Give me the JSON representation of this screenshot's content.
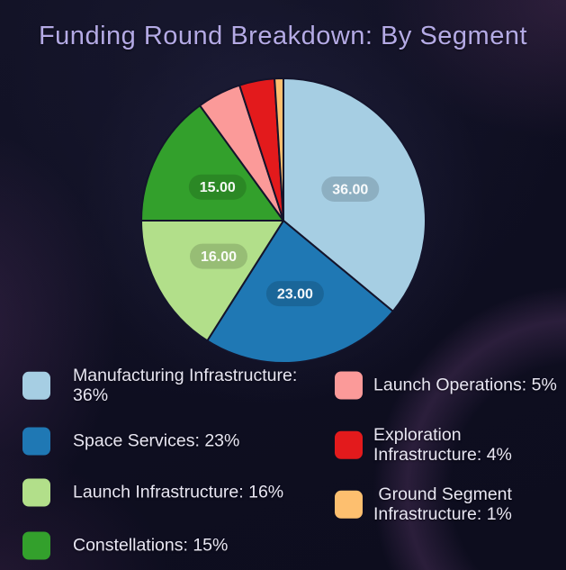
{
  "page": {
    "title": "Funding Round Breakdown: By Segment"
  },
  "colors": {
    "background": "#0e0e20",
    "title_text": "#b4aae5",
    "legend_text": "#e8e6f2",
    "slice_stroke": "#14142b",
    "value_pill": "rgba(0,0,0,0.15)",
    "value_text": "#ffffff"
  },
  "chart_data": {
    "type": "pie",
    "title": "Funding Round Breakdown: By Segment",
    "start_angle_deg": 90,
    "direction": "clockwise",
    "total": 100,
    "slices": [
      {
        "label": "Manufacturing Infrastructure",
        "value": 36,
        "color": "#a6cee3",
        "value_label": "36.00",
        "legend_label": "Manufacturing Infrastructure: 36%"
      },
      {
        "label": "Space Services",
        "value": 23,
        "color": "#1f78b4",
        "value_label": "23.00",
        "legend_label": "Space Services: 23%"
      },
      {
        "label": "Launch Infrastructure",
        "value": 16,
        "color": "#b2df8a",
        "value_label": "16.00",
        "legend_label": "Launch Infrastructure: 16%"
      },
      {
        "label": "Constellations",
        "value": 15,
        "color": "#33a02c",
        "value_label": "15.00",
        "legend_label": "Constellations: 15%"
      },
      {
        "label": "Launch Operations",
        "value": 5,
        "color": "#fb9a99",
        "value_label": null,
        "legend_label": "Launch Operations: 5%"
      },
      {
        "label": "Exploration Infrastructure",
        "value": 4,
        "color": "#e31a1c",
        "value_label": null,
        "legend_label": "Exploration Infrastructure: 4%"
      },
      {
        "label": "Ground Segment Infrastructure",
        "value": 1,
        "color": "#fdbf6f",
        "value_label": null,
        "legend_label": " Ground Segment Infrastructure: 1%"
      }
    ],
    "legend": {
      "position": "bottom",
      "columns": 2
    }
  }
}
